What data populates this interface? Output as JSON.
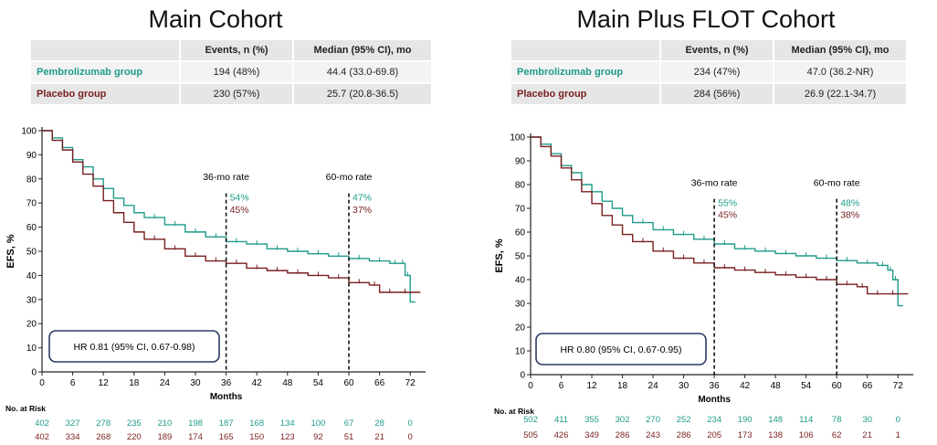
{
  "colors": {
    "pembro": "#1f9b8a",
    "placebo": "#7a1f1f",
    "hr_box": "#2b3a67"
  },
  "panels": [
    {
      "title": "Main Cohort",
      "table": {
        "headers": [
          "",
          "Events, n (%)",
          "Median (95% CI), mo"
        ],
        "rows": [
          {
            "group": "Pembrolizumab group",
            "events": "194 (48%)",
            "median": "44.4 (33.0-69.8)"
          },
          {
            "group": "Placebo group",
            "events": "230 (57%)",
            "median": "25.7 (20.8-36.5)"
          }
        ]
      }
    },
    {
      "title": "Main Plus FLOT Cohort",
      "table": {
        "headers": [
          "",
          "Events, n (%)",
          "Median (95% CI), mo"
        ],
        "rows": [
          {
            "group": "Pembrolizumab group",
            "events": "234 (47%)",
            "median": "47.0 (36.2-NR)"
          },
          {
            "group": "Placebo group",
            "events": "284 (56%)",
            "median": "26.9 (22.1-34.7)"
          }
        ]
      }
    }
  ],
  "chart_data": [
    {
      "type": "line",
      "xlabel": "Months",
      "ylabel": "EFS, %",
      "xlim": [
        0,
        75
      ],
      "ylim": [
        0,
        100
      ],
      "xticks": [
        0,
        6,
        12,
        18,
        24,
        30,
        36,
        42,
        48,
        54,
        60,
        66,
        72
      ],
      "yticks": [
        0,
        10,
        20,
        30,
        40,
        50,
        60,
        70,
        80,
        90,
        100
      ],
      "grid": false,
      "hr_text": "HR 0.81 (95% CI, 0.67-0.98)",
      "milestones": [
        {
          "x": 36,
          "label": "36-mo rate",
          "pembro": "54%",
          "placebo": "45%"
        },
        {
          "x": 60,
          "label": "60-mo rate",
          "pembro": "47%",
          "placebo": "37%"
        }
      ],
      "series": [
        {
          "x": [
            0,
            2,
            4,
            6,
            8,
            10,
            12,
            14,
            16,
            18,
            20,
            24,
            28,
            32,
            36,
            40,
            44,
            48,
            52,
            56,
            60,
            64,
            68,
            70,
            71,
            72,
            73
          ],
          "y": [
            100,
            97,
            93,
            88,
            85,
            80,
            76,
            72,
            69,
            66,
            64,
            61,
            58,
            56,
            54,
            53,
            51,
            50,
            49,
            48,
            47,
            46,
            45,
            45,
            40,
            29,
            29
          ]
        },
        {
          "x": [
            0,
            2,
            4,
            6,
            8,
            10,
            12,
            14,
            16,
            18,
            20,
            24,
            28,
            32,
            36,
            40,
            44,
            48,
            52,
            56,
            60,
            64,
            66,
            70,
            72,
            74
          ],
          "y": [
            100,
            96,
            92,
            87,
            82,
            77,
            71,
            66,
            62,
            58,
            55,
            51,
            48,
            46,
            45,
            43,
            42,
            41,
            40,
            39,
            37,
            36,
            33,
            33,
            33,
            33
          ]
        }
      ],
      "at_risk_label": "No. at Risk",
      "at_risk": [
        [
          "402",
          "327",
          "278",
          "235",
          "210",
          "198",
          "187",
          "168",
          "134",
          "100",
          "67",
          "28",
          "0"
        ],
        [
          "402",
          "334",
          "268",
          "220",
          "189",
          "174",
          "165",
          "150",
          "123",
          "92",
          "51",
          "21",
          "0"
        ]
      ]
    },
    {
      "type": "line",
      "xlabel": "Months",
      "ylabel": "EFS, %",
      "xlim": [
        0,
        75
      ],
      "ylim": [
        0,
        100
      ],
      "xticks": [
        0,
        6,
        12,
        18,
        24,
        30,
        36,
        42,
        48,
        54,
        60,
        66,
        72
      ],
      "yticks": [
        0,
        10,
        20,
        30,
        40,
        50,
        60,
        70,
        80,
        90,
        100
      ],
      "grid": false,
      "hr_text": "HR 0.80 (95% CI, 0.67-0.95)",
      "milestones": [
        {
          "x": 36,
          "label": "36-mo rate",
          "pembro": "55%",
          "placebo": "45%"
        },
        {
          "x": 60,
          "label": "60-mo rate",
          "pembro": "48%",
          "placebo": "38%"
        }
      ],
      "series": [
        {
          "x": [
            0,
            2,
            4,
            6,
            8,
            10,
            12,
            14,
            16,
            18,
            20,
            24,
            28,
            32,
            36,
            40,
            44,
            48,
            52,
            56,
            60,
            64,
            68,
            70,
            71,
            72,
            73
          ],
          "y": [
            100,
            97,
            93,
            88,
            85,
            80,
            77,
            73,
            70,
            67,
            64,
            61,
            59,
            57,
            55,
            53,
            52,
            51,
            50,
            49,
            48,
            47,
            46,
            44,
            40,
            29,
            29
          ]
        },
        {
          "x": [
            0,
            2,
            4,
            6,
            8,
            10,
            12,
            14,
            16,
            18,
            20,
            24,
            28,
            32,
            36,
            40,
            44,
            48,
            52,
            56,
            60,
            64,
            66,
            70,
            72,
            74
          ],
          "y": [
            100,
            96,
            92,
            87,
            82,
            77,
            72,
            67,
            63,
            59,
            56,
            52,
            49,
            47,
            45,
            44,
            43,
            42,
            41,
            40,
            38,
            37,
            34,
            34,
            34,
            34
          ]
        }
      ],
      "at_risk_label": "No. at Risk",
      "at_risk": [
        [
          "502",
          "411",
          "355",
          "302",
          "270",
          "252",
          "234",
          "190",
          "148",
          "114",
          "78",
          "30",
          "0"
        ],
        [
          "505",
          "426",
          "349",
          "286",
          "243",
          "286",
          "205",
          "173",
          "138",
          "106",
          "62",
          "21",
          "1"
        ]
      ]
    }
  ]
}
